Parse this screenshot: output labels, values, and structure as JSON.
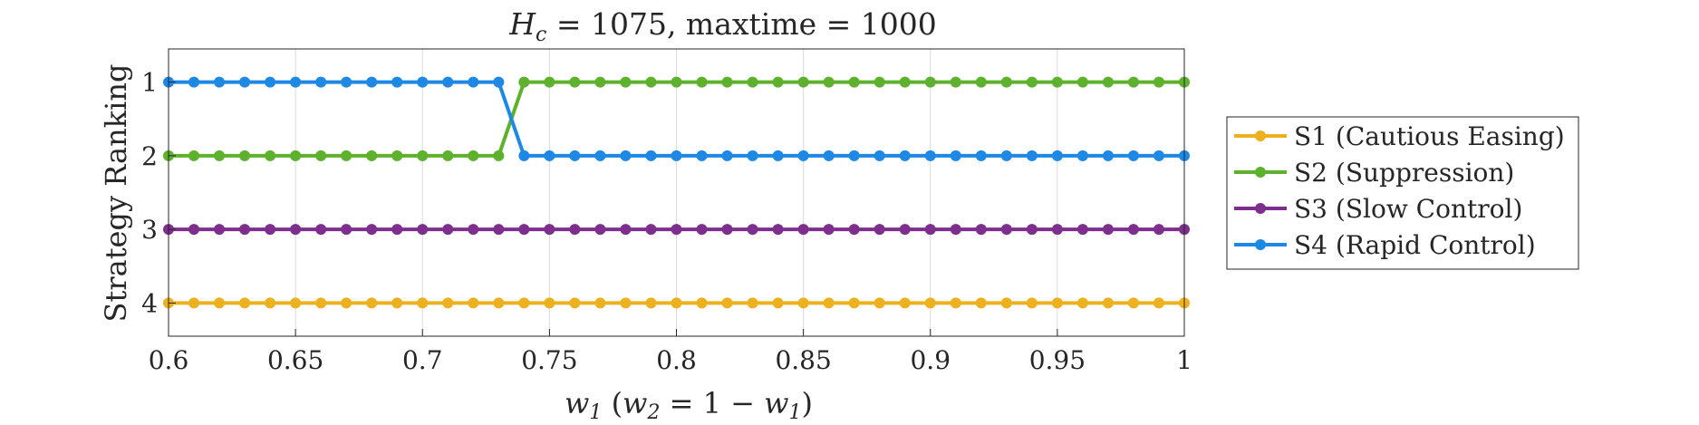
{
  "chart_data": {
    "type": "line",
    "title": {
      "var": "H",
      "sub": "c",
      "rest": " = 1075, maxtime = 1000"
    },
    "xlabel": {
      "w1_var": "w",
      "w1_sub": "1",
      "paren_open": " (",
      "w2_var": "w",
      "w2_sub": "2",
      "eq": " = 1 − ",
      "w1b_var": "w",
      "w1b_sub": "1",
      "paren_close": ")"
    },
    "ylabel": "Strategy Ranking",
    "xlim": [
      0.6,
      1.0
    ],
    "ylim": [
      4.45,
      0.55
    ],
    "y_reversed": true,
    "grid": "x-only",
    "legend_position": "right",
    "x_ticks": [
      "0.6",
      "0.65",
      "0.7",
      "0.75",
      "0.8",
      "0.85",
      "0.9",
      "0.95",
      "1"
    ],
    "y_ticks": [
      "1",
      "2",
      "3",
      "4"
    ],
    "x": [
      0.6,
      0.61,
      0.62,
      0.63,
      0.64,
      0.65,
      0.66,
      0.67,
      0.68,
      0.69,
      0.7,
      0.71,
      0.72,
      0.73,
      0.74,
      0.75,
      0.76,
      0.77,
      0.78,
      0.79,
      0.8,
      0.81,
      0.82,
      0.83,
      0.84,
      0.85,
      0.86,
      0.87,
      0.88,
      0.89,
      0.9,
      0.91,
      0.92,
      0.93,
      0.94,
      0.95,
      0.96,
      0.97,
      0.98,
      0.99,
      1.0
    ],
    "series": [
      {
        "name": "S1 (Cautious Easing)",
        "color": "#EDB120",
        "values": [
          4,
          4,
          4,
          4,
          4,
          4,
          4,
          4,
          4,
          4,
          4,
          4,
          4,
          4,
          4,
          4,
          4,
          4,
          4,
          4,
          4,
          4,
          4,
          4,
          4,
          4,
          4,
          4,
          4,
          4,
          4,
          4,
          4,
          4,
          4,
          4,
          4,
          4,
          4,
          4,
          4
        ]
      },
      {
        "name": "S2 (Suppression)",
        "color": "#5DB12D",
        "values": [
          2,
          2,
          2,
          2,
          2,
          2,
          2,
          2,
          2,
          2,
          2,
          2,
          2,
          2,
          1,
          1,
          1,
          1,
          1,
          1,
          1,
          1,
          1,
          1,
          1,
          1,
          1,
          1,
          1,
          1,
          1,
          1,
          1,
          1,
          1,
          1,
          1,
          1,
          1,
          1,
          1
        ]
      },
      {
        "name": "S3 (Slow Control)",
        "color": "#7E2F8E",
        "values": [
          3,
          3,
          3,
          3,
          3,
          3,
          3,
          3,
          3,
          3,
          3,
          3,
          3,
          3,
          3,
          3,
          3,
          3,
          3,
          3,
          3,
          3,
          3,
          3,
          3,
          3,
          3,
          3,
          3,
          3,
          3,
          3,
          3,
          3,
          3,
          3,
          3,
          3,
          3,
          3,
          3
        ]
      },
      {
        "name": "S4 (Rapid Control)",
        "color": "#1E88E5",
        "values": [
          1,
          1,
          1,
          1,
          1,
          1,
          1,
          1,
          1,
          1,
          1,
          1,
          1,
          1,
          2,
          2,
          2,
          2,
          2,
          2,
          2,
          2,
          2,
          2,
          2,
          2,
          2,
          2,
          2,
          2,
          2,
          2,
          2,
          2,
          2,
          2,
          2,
          2,
          2,
          2,
          2
        ]
      }
    ]
  }
}
